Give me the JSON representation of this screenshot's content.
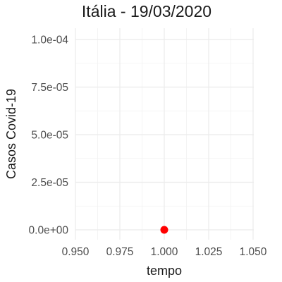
{
  "chart_data": {
    "type": "scatter",
    "title": "Itália - 19/03/2020",
    "xlabel": "tempo",
    "ylabel": "Casos Covid-19",
    "xlim": [
      0.95,
      1.05
    ],
    "ylim": [
      0,
      0.0001
    ],
    "x_ticks": [
      0.95,
      0.975,
      1.0,
      1.025,
      1.05
    ],
    "x_tick_labels": [
      "0.950",
      "0.975",
      "1.000",
      "1.025",
      "1.050"
    ],
    "y_ticks": [
      0,
      2.5e-05,
      5e-05,
      7.5e-05,
      0.0001
    ],
    "y_tick_labels": [
      "0.0e+00",
      "2.5e-05",
      "5.0e-05",
      "7.5e-05",
      "1.0e-04"
    ],
    "grid": true,
    "series": [
      {
        "points": [
          {
            "x": 1.0,
            "y": 0
          }
        ],
        "color": "#ff0000"
      }
    ]
  }
}
